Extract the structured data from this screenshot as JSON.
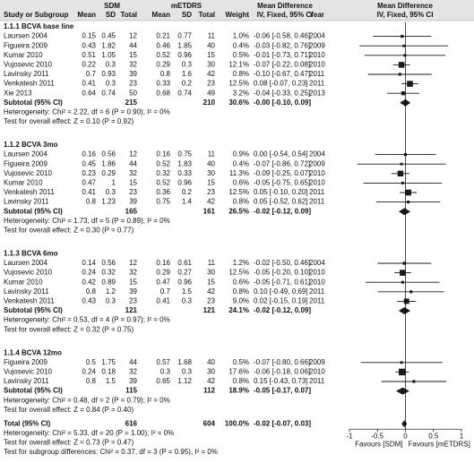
{
  "chart_data": {
    "type": "forest",
    "header": {
      "top": [
        "SDM",
        "mETDRS",
        "Mean Difference",
        "Mean Difference"
      ],
      "columns": [
        "Study or Subgroup",
        "Mean",
        "SD",
        "Total",
        "Mean",
        "SD",
        "Total",
        "Weight",
        "IV, Fixed, 95% CI",
        "Year",
        "IV, Fixed, 95% CI"
      ]
    },
    "color": "#1a1a1a",
    "xlim": [
      -1,
      1
    ],
    "xticks": [
      -1,
      -0.5,
      0,
      0.5,
      1
    ],
    "x_labels": [
      "Favours [SDM]",
      "Favours [mETDRS]"
    ],
    "groups": [
      {
        "title": "1.1.1 BCVA base line",
        "rows": [
          {
            "study": "Laursen 2004",
            "sdm": [
              "0.15",
              "0.45",
              "12"
            ],
            "metdrs": [
              "0.21",
              "0.77",
              "11"
            ],
            "weight": 1.0,
            "weight_label": "1.0%",
            "md": -0.06,
            "lo": -0.58,
            "hi": 0.46,
            "md_label": "-0.06 [-0.58, 0.46]",
            "year": "2004"
          },
          {
            "study": "Figueira 2009",
            "sdm": [
              "0.43",
              "1.82",
              "44"
            ],
            "metdrs": [
              "0.46",
              "1.85",
              "40"
            ],
            "weight": 0.4,
            "weight_label": "0.4%",
            "md": -0.03,
            "lo": -0.82,
            "hi": 0.76,
            "md_label": "-0.03 [-0.82, 0.76]",
            "year": "2009"
          },
          {
            "study": "Kumar 2010",
            "sdm": [
              "0.51",
              "1.05",
              "15"
            ],
            "metdrs": [
              "0.52",
              "0.96",
              "15"
            ],
            "weight": 0.5,
            "weight_label": "0.5%",
            "md": -0.01,
            "lo": -0.73,
            "hi": 0.71,
            "md_label": "-0.01 [-0.73, 0.71]",
            "year": "2010"
          },
          {
            "study": "Vujosevic 2010",
            "sdm": [
              "0.22",
              "0.3",
              "32"
            ],
            "metdrs": [
              "0.29",
              "0.3",
              "30"
            ],
            "weight": 12.1,
            "weight_label": "12.1%",
            "md": -0.07,
            "lo": -0.22,
            "hi": 0.08,
            "md_label": "-0.07 [-0.22, 0.08]",
            "year": "2010"
          },
          {
            "study": "Lavinsky 2011",
            "sdm": [
              "0.7",
              "0.93",
              "39"
            ],
            "metdrs": [
              "0.8",
              "1.6",
              "42"
            ],
            "weight": 0.8,
            "weight_label": "0.8%",
            "md": -0.1,
            "lo": -0.67,
            "hi": 0.47,
            "md_label": "-0.10 [-0.67, 0.47]",
            "year": "2011"
          },
          {
            "study": "Venkatesh 2011",
            "sdm": [
              "0.41",
              "0.3",
              "23"
            ],
            "metdrs": [
              "0.33",
              "0.2",
              "23"
            ],
            "weight": 12.5,
            "weight_label": "12.5%",
            "md": 0.08,
            "lo": -0.07,
            "hi": 0.23,
            "md_label": "0.08 [-0.07, 0.23]",
            "year": "2011"
          },
          {
            "study": "Xie 2013",
            "sdm": [
              "0.64",
              "0.74",
              "50"
            ],
            "metdrs": [
              "0.68",
              "0.74",
              "49"
            ],
            "weight": 3.2,
            "weight_label": "3.2%",
            "md": -0.04,
            "lo": -0.33,
            "hi": 0.25,
            "md_label": "-0.04 [-0.33, 0.25]",
            "year": "2013"
          }
        ],
        "subtotal": {
          "label": "Subtotal (95% CI)",
          "sdm_total": "215",
          "metdrs_total": "210",
          "weight_label": "30.6%",
          "md": 0,
          "lo": -0.1,
          "hi": 0.09,
          "md_label": "-0.00 [-0.10, 0.09]"
        },
        "heterogeneity": "Heterogeneity: Chi² = 2.22, df = 6 (P = 0.90); I² = 0%",
        "overall_effect": "Test for overall effect: Z = 0.10 (P = 0.92)"
      },
      {
        "title": "1.1.2 BCVA 3mo",
        "rows": [
          {
            "study": "Laursen 2004",
            "sdm": [
              "0.16",
              "0.56",
              "12"
            ],
            "metdrs": [
              "0.16",
              "0.75",
              "11"
            ],
            "weight": 0.9,
            "weight_label": "0.9%",
            "md": 0.0,
            "lo": -0.54,
            "hi": 0.54,
            "md_label": "0.00 [-0.54, 0.54]",
            "year": "2004"
          },
          {
            "study": "Figueira 2009",
            "sdm": [
              "0.45",
              "1.86",
              "44"
            ],
            "metdrs": [
              "0.52",
              "1.83",
              "40"
            ],
            "weight": 0.4,
            "weight_label": "0.4%",
            "md": -0.07,
            "lo": -0.86,
            "hi": 0.72,
            "md_label": "-0.07 [-0.86, 0.72]",
            "year": "2009"
          },
          {
            "study": "Vujosevic 2010",
            "sdm": [
              "0.23",
              "0.29",
              "32"
            ],
            "metdrs": [
              "0.32",
              "0.33",
              "30"
            ],
            "weight": 11.3,
            "weight_label": "11.3%",
            "md": -0.09,
            "lo": -0.25,
            "hi": 0.07,
            "md_label": "-0.09 [-0.25, 0.07]",
            "year": "2010"
          },
          {
            "study": "Kumar 2010",
            "sdm": [
              "0.47",
              "1",
              "15"
            ],
            "metdrs": [
              "0.52",
              "0.96",
              "15"
            ],
            "weight": 0.6,
            "weight_label": "0.6%",
            "md": -0.05,
            "lo": -0.75,
            "hi": 0.65,
            "md_label": "-0.05 [-0.75, 0.65]",
            "year": "2010"
          },
          {
            "study": "Venkatesh 2011",
            "sdm": [
              "0.41",
              "0.3",
              "23"
            ],
            "metdrs": [
              "0.36",
              "0.2",
              "23"
            ],
            "weight": 12.5,
            "weight_label": "12.5%",
            "md": 0.05,
            "lo": -0.1,
            "hi": 0.2,
            "md_label": "0.05 [-0.10, 0.20]",
            "year": "2011"
          },
          {
            "study": "Lavinsky 2011",
            "sdm": [
              "0.8",
              "1.23",
              "39"
            ],
            "metdrs": [
              "0.75",
              "1.4",
              "42"
            ],
            "weight": 0.8,
            "weight_label": "0.8%",
            "md": 0.05,
            "lo": -0.52,
            "hi": 0.62,
            "md_label": "0.05 [-0.52, 0.62]",
            "year": "2011"
          }
        ],
        "subtotal": {
          "label": "Subtotal (95% CI)",
          "sdm_total": "165",
          "metdrs_total": "161",
          "weight_label": "26.5%",
          "md": -0.02,
          "lo": -0.12,
          "hi": 0.09,
          "md_label": "-0.02 [-0.12, 0.09]"
        },
        "heterogeneity": "Heterogeneity: Chi² = 1.73, df = 5 (P = 0.89); I² = 0%",
        "overall_effect": "Test for overall effect: Z = 0.30 (P = 0.77)"
      },
      {
        "title": "1.1.3 BCVA 6mo",
        "rows": [
          {
            "study": "Laursen 2004",
            "sdm": [
              "0.14",
              "0.56",
              "12"
            ],
            "metdrs": [
              "0.16",
              "0.61",
              "11"
            ],
            "weight": 1.2,
            "weight_label": "1.2%",
            "md": -0.02,
            "lo": -0.5,
            "hi": 0.46,
            "md_label": "-0.02 [-0.50, 0.46]",
            "year": "2004"
          },
          {
            "study": "Vujosevic 2010",
            "sdm": [
              "0.24",
              "0.32",
              "32"
            ],
            "metdrs": [
              "0.29",
              "0.27",
              "30"
            ],
            "weight": 12.5,
            "weight_label": "12.5%",
            "md": -0.05,
            "lo": -0.2,
            "hi": 0.1,
            "md_label": "-0.05 [-0.20, 0.10]",
            "year": "2010"
          },
          {
            "study": "Kumar 2010",
            "sdm": [
              "0.42",
              "0.89",
              "15"
            ],
            "metdrs": [
              "0.47",
              "0.96",
              "15"
            ],
            "weight": 0.6,
            "weight_label": "0.6%",
            "md": -0.05,
            "lo": -0.71,
            "hi": 0.61,
            "md_label": "-0.05 [-0.71, 0.61]",
            "year": "2010"
          },
          {
            "study": "Lavinsky 2011",
            "sdm": [
              "0.8",
              "1.2",
              "39"
            ],
            "metdrs": [
              "0.7",
              "1.5",
              "42"
            ],
            "weight": 0.8,
            "weight_label": "0.8%",
            "md": 0.1,
            "lo": -0.49,
            "hi": 0.69,
            "md_label": "0.10 [-0.49, 0.69]",
            "year": "2011"
          },
          {
            "study": "Venkatesh 2011",
            "sdm": [
              "0.43",
              "0.3",
              "23"
            ],
            "metdrs": [
              "0.41",
              "0.3",
              "23"
            ],
            "weight": 9.0,
            "weight_label": "9.0%",
            "md": 0.02,
            "lo": -0.15,
            "hi": 0.19,
            "md_label": "0.02 [-0.15, 0.19]",
            "year": "2011"
          }
        ],
        "subtotal": {
          "label": "Subtotal (95% CI)",
          "sdm_total": "121",
          "metdrs_total": "121",
          "weight_label": "24.1%",
          "md": -0.02,
          "lo": -0.12,
          "hi": 0.09,
          "md_label": "-0.02 [-0.12, 0.09]"
        },
        "heterogeneity": "Heterogeneity: Chi² = 0.53, df = 4 (P = 0.97); I² = 0%",
        "overall_effect": "Test for overall effect: Z = 0.32 (P = 0.75)"
      },
      {
        "title": "1.1.4 BCVA 12mo",
        "rows": [
          {
            "study": "Figueira 2009",
            "sdm": [
              "0.5",
              "1.75",
              "44"
            ],
            "metdrs": [
              "0.57",
              "1.68",
              "40"
            ],
            "weight": 0.5,
            "weight_label": "0.5%",
            "md": -0.07,
            "lo": -0.8,
            "hi": 0.66,
            "md_label": "-0.07 [-0.80, 0.66]",
            "year": "2009"
          },
          {
            "study": "Vujosevic 2010",
            "sdm": [
              "0.24",
              "0.18",
              "32"
            ],
            "metdrs": [
              "0.3",
              "0.3",
              "30"
            ],
            "weight": 17.6,
            "weight_label": "17.6%",
            "md": -0.06,
            "lo": -0.18,
            "hi": 0.06,
            "md_label": "-0.06 [-0.18, 0.06]",
            "year": "2010"
          },
          {
            "study": "Lavinsky 2011",
            "sdm": [
              "0.8",
              "1.5",
              "39"
            ],
            "metdrs": [
              "0.65",
              "1.12",
              "42"
            ],
            "weight": 0.8,
            "weight_label": "0.8%",
            "md": 0.15,
            "lo": -0.43,
            "hi": 0.73,
            "md_label": "0.15 [-0.43, 0.73]",
            "year": "2011"
          }
        ],
        "subtotal": {
          "label": "Subtotal (95% CI)",
          "sdm_total": "115",
          "metdrs_total": "112",
          "weight_label": "18.9%",
          "md": -0.05,
          "lo": -0.17,
          "hi": 0.07,
          "md_label": "-0.05 [-0.17, 0.07]"
        },
        "heterogeneity": "Heterogeneity: Chi² = 0.48, df = 2 (P = 0.79); I² = 0%",
        "overall_effect": "Test for overall effect: Z = 0.84 (P = 0.40)"
      }
    ],
    "total": {
      "label": "Total (95% CI)",
      "sdm_total": "616",
      "metdrs_total": "604",
      "weight_label": "100.0%",
      "md": -0.02,
      "lo": -0.07,
      "hi": 0.03,
      "md_label": "-0.02 [-0.07, 0.03]",
      "heterogeneity": "Heterogeneity: Chi² = 5.33, df = 20 (P = 1.00); I² = 0%",
      "overall_effect": "Test for overall effect: Z = 0.73 (P = 0.47)",
      "subgroup_differences": "Test for subgroup differences: Chi² = 0.37, df = 3 (P = 0.95), I² = 0%"
    }
  }
}
